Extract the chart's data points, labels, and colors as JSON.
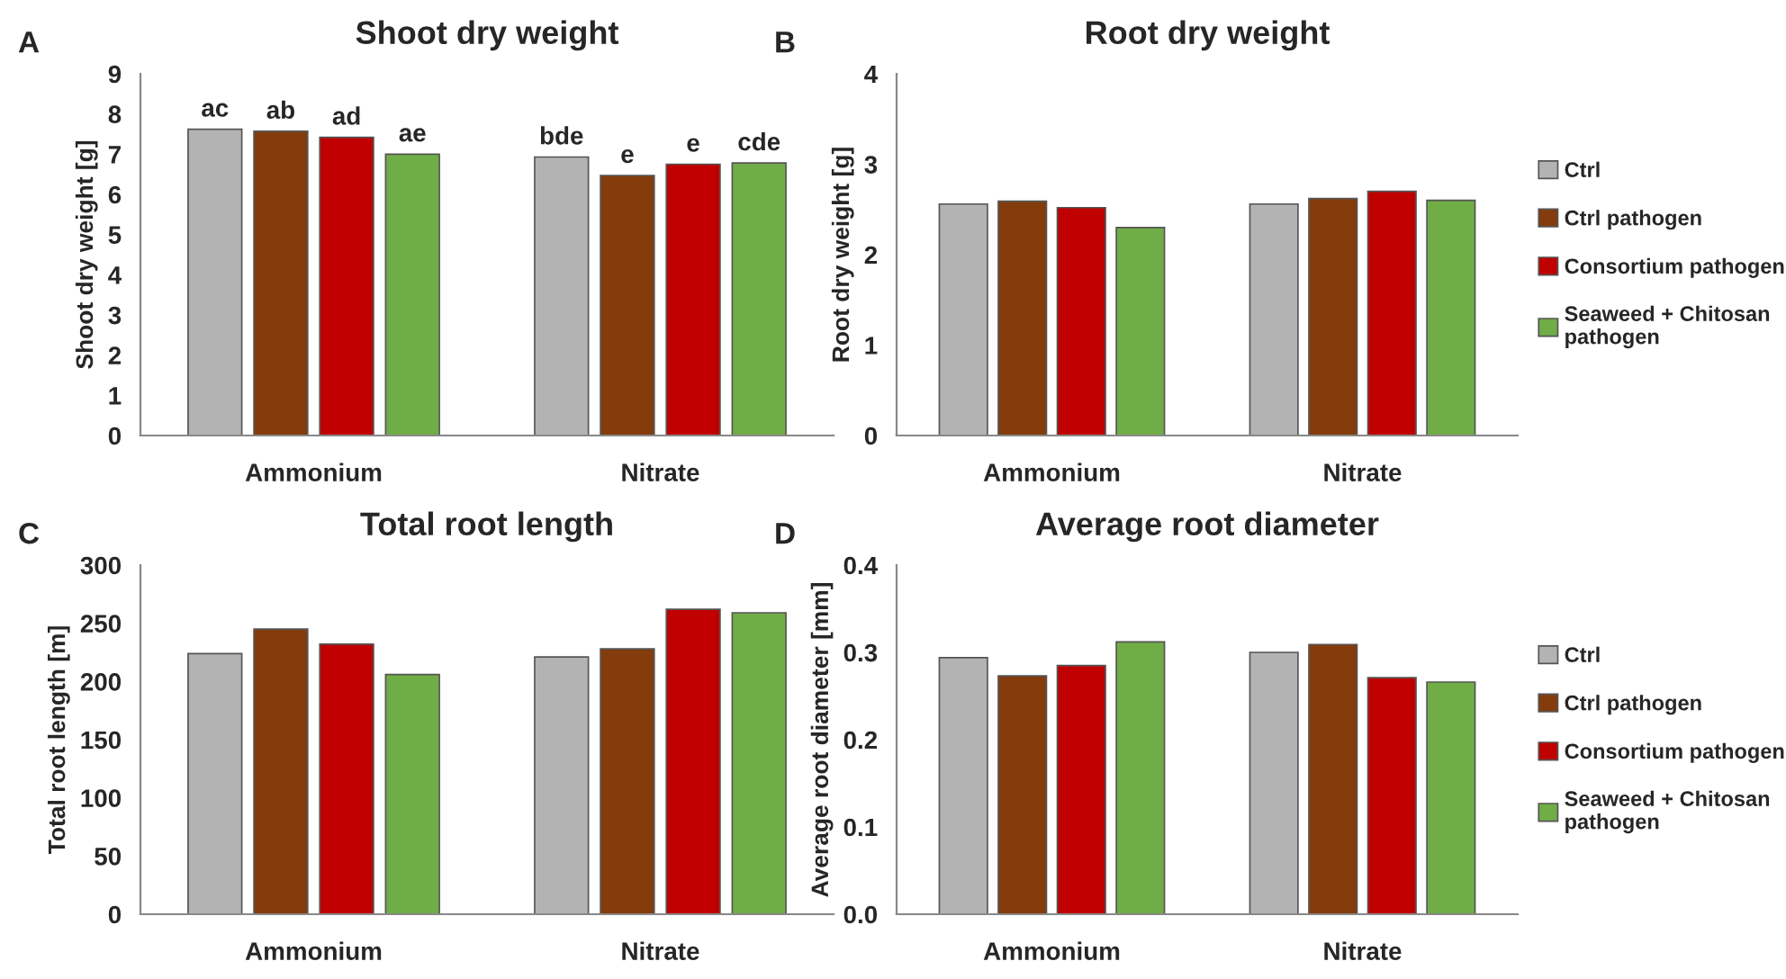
{
  "chart_data": [
    {
      "type": "bar",
      "title": "Shoot dry weight",
      "ylabel": "Shoot dry weight [g]",
      "annotations": [
        "A"
      ],
      "categories": [
        "Ammonium",
        "Nitrate"
      ],
      "ylim": [
        0,
        9
      ],
      "yticks": [
        0,
        1,
        2,
        3,
        4,
        5,
        6,
        7,
        8,
        9
      ],
      "grid": false,
      "legend": false,
      "series": [
        {
          "color": "#b3b3b3",
          "values": [
            7.62,
            6.93
          ],
          "value_labels": [
            "ac",
            "bde"
          ]
        },
        {
          "color": "#843c0c",
          "values": [
            7.57,
            6.47
          ],
          "value_labels": [
            "ab",
            "e"
          ]
        },
        {
          "color": "#c00000",
          "values": [
            7.42,
            6.75
          ],
          "value_labels": [
            "ad",
            "e"
          ]
        },
        {
          "color": "#70ad47",
          "values": [
            7.0,
            6.78
          ],
          "value_labels": [
            "ae",
            "cde"
          ]
        }
      ]
    },
    {
      "type": "bar",
      "title": "Root dry weight",
      "ylabel": "Root dry weight [g]",
      "annotations": [
        "B"
      ],
      "categories": [
        "Ammonium",
        "Nitrate"
      ],
      "ylim": [
        0,
        4
      ],
      "yticks": [
        0,
        1,
        2,
        3,
        4
      ],
      "grid": false,
      "legend": "right",
      "series": [
        {
          "name": "Ctrl",
          "color": "#b3b3b3",
          "values": [
            2.56,
            2.56
          ]
        },
        {
          "name": "Ctrl pathogen",
          "color": "#843c0c",
          "values": [
            2.59,
            2.62
          ]
        },
        {
          "name": "Consortium pathogen",
          "color": "#c00000",
          "values": [
            2.52,
            2.7
          ]
        },
        {
          "name": "Seaweed + Chitosan pathogen",
          "color": "#70ad47",
          "values": [
            2.3,
            2.6
          ]
        }
      ]
    },
    {
      "type": "bar",
      "title": "Total root length",
      "ylabel": "Total root length [m]",
      "annotations": [
        "C"
      ],
      "categories": [
        "Ammonium",
        "Nitrate"
      ],
      "ylim": [
        0,
        300
      ],
      "yticks": [
        0,
        50,
        100,
        150,
        200,
        250,
        300
      ],
      "grid": false,
      "legend": false,
      "series": [
        {
          "color": "#b3b3b3",
          "values": [
            224,
            221
          ]
        },
        {
          "color": "#843c0c",
          "values": [
            245,
            228
          ]
        },
        {
          "color": "#c00000",
          "values": [
            232,
            262
          ]
        },
        {
          "color": "#70ad47",
          "values": [
            206,
            259
          ]
        }
      ]
    },
    {
      "type": "bar",
      "title": "Average root diameter",
      "ylabel": "Average root diameter [mm]",
      "annotations": [
        "D"
      ],
      "categories": [
        "Ammonium",
        "Nitrate"
      ],
      "ylim": [
        0,
        0.4
      ],
      "yticks": [
        {
          "value": 0,
          "label": "0.0"
        },
        0.1,
        0.2,
        0.3,
        0.4
      ],
      "grid": false,
      "legend": "right",
      "series": [
        {
          "name": "Ctrl",
          "color": "#b3b3b3",
          "values": [
            0.294,
            0.3
          ]
        },
        {
          "name": "Ctrl pathogen",
          "color": "#843c0c",
          "values": [
            0.273,
            0.309
          ]
        },
        {
          "name": "Consortium pathogen",
          "color": "#c00000",
          "values": [
            0.285,
            0.271
          ]
        },
        {
          "name": "Seaweed + Chitosan pathogen",
          "color": "#70ad47",
          "values": [
            0.312,
            0.266
          ]
        }
      ]
    }
  ]
}
